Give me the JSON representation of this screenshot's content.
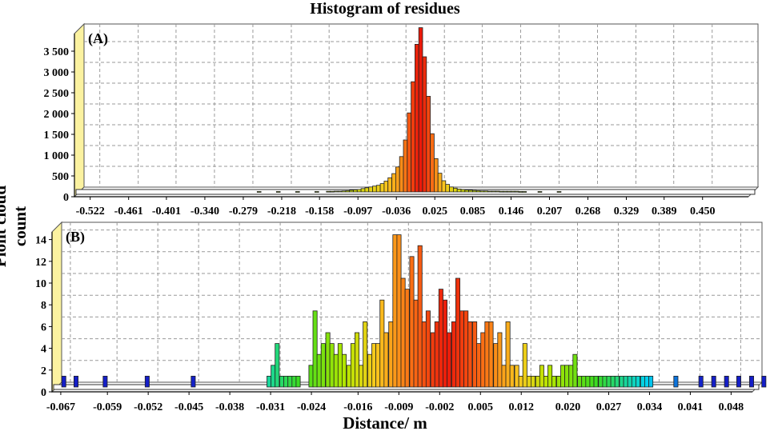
{
  "title": "Histogram of residues",
  "xlabel": "Distance/ m",
  "ylabel": "Piont cloud count",
  "chart_data": [
    {
      "type": "bar",
      "panel_label": "(A)",
      "ylim": [
        0,
        4000
      ],
      "yticks": [
        0,
        500,
        1000,
        1500,
        2000,
        2500,
        3000,
        3500
      ],
      "ytick_labels": [
        "0",
        "500",
        "1 000",
        "1 500",
        "2 000",
        "2 500",
        "3 000",
        "3 500"
      ],
      "xlim": [
        -0.547,
        0.538
      ],
      "xticks": [
        -0.522,
        -0.461,
        -0.401,
        -0.34,
        -0.279,
        -0.218,
        -0.158,
        -0.097,
        -0.036,
        0.025,
        0.085,
        0.146,
        0.207,
        0.268,
        0.329,
        0.389,
        0.45
      ],
      "xtick_labels": [
        "-0.522",
        "-0.461",
        "-0.401",
        "-0.340",
        "-0.279",
        "-0.218",
        "-0.158",
        "-0.097",
        "-0.036",
        "0.025",
        "0.085",
        "0.146",
        "0.207",
        "0.268",
        "0.329",
        "0.389",
        "0.450"
      ],
      "bin_width": 0.00611,
      "x": [
        -0.2615,
        -0.231,
        -0.2004,
        -0.1699,
        -0.1516,
        -0.1455,
        -0.1393,
        -0.1332,
        -0.1271,
        -0.121,
        -0.1149,
        -0.1088,
        -0.1027,
        -0.0966,
        -0.0905,
        -0.0844,
        -0.0783,
        -0.0722,
        -0.0661,
        -0.06,
        -0.0539,
        -0.0477,
        -0.0416,
        -0.0355,
        -0.0294,
        -0.0233,
        -0.0172,
        -0.0111,
        -0.005,
        0.0011,
        0.0072,
        0.0133,
        0.0194,
        0.0255,
        0.0316,
        0.0377,
        0.0438,
        0.0499,
        0.056,
        0.0621,
        0.0682,
        0.0743,
        0.0804,
        0.0865,
        0.0926,
        0.0987,
        0.1048,
        0.1109,
        0.117,
        0.1231,
        0.1292,
        0.1353,
        0.1414,
        0.1475,
        0.1536,
        0.1597,
        0.1842,
        0.2147
      ],
      "values": [
        10,
        10,
        10,
        10,
        15,
        15,
        20,
        20,
        25,
        30,
        40,
        50,
        60,
        80,
        100,
        120,
        140,
        160,
        200,
        260,
        340,
        440,
        600,
        850,
        1250,
        1900,
        2650,
        3550,
        3950,
        3250,
        2300,
        1400,
        800,
        450,
        270,
        180,
        120,
        90,
        70,
        55,
        45,
        40,
        35,
        30,
        25,
        25,
        20,
        20,
        20,
        15,
        15,
        15,
        15,
        15,
        10,
        10,
        10,
        10
      ]
    },
    {
      "type": "bar",
      "panel_label": "(B)",
      "ylim": [
        0,
        15
      ],
      "yticks": [
        0,
        2,
        4,
        6,
        8,
        10,
        12,
        14
      ],
      "ytick_labels": [
        "0",
        "2",
        "4",
        "6",
        "8",
        "10",
        "12",
        "14"
      ],
      "xlim": [
        -0.0685,
        0.0533
      ],
      "xticks": [
        -0.067,
        -0.059,
        -0.052,
        -0.045,
        -0.038,
        -0.031,
        -0.024,
        -0.016,
        -0.009,
        -0.002,
        0.005,
        0.012,
        0.02,
        0.027,
        0.034,
        0.041,
        0.048
      ],
      "xtick_labels": [
        "-0.067",
        "-0.059",
        "-0.052",
        "-0.045",
        "-0.038",
        "-0.031",
        "-0.024",
        "-0.016",
        "-0.009",
        "-0.002",
        "0.005",
        "0.012",
        "0.020",
        "0.027",
        "0.034",
        "0.041",
        "0.048"
      ],
      "bin_width": 0.00072,
      "x": [
        -0.0673,
        -0.0652,
        -0.0602,
        -0.053,
        -0.0451,
        -0.0321,
        -0.0314,
        -0.0307,
        -0.0299,
        -0.0292,
        -0.0285,
        -0.0278,
        -0.0271,
        -0.0249,
        -0.0242,
        -0.0235,
        -0.0228,
        -0.022,
        -0.0213,
        -0.0206,
        -0.0199,
        -0.0192,
        -0.0184,
        -0.0177,
        -0.017,
        -0.0163,
        -0.0156,
        -0.0148,
        -0.0141,
        -0.0134,
        -0.0127,
        -0.012,
        -0.0112,
        -0.0105,
        -0.0098,
        -0.0091,
        -0.0084,
        -0.0076,
        -0.0069,
        -0.0062,
        -0.0055,
        -0.0048,
        -0.004,
        -0.0033,
        -0.0026,
        -0.0019,
        -0.0012,
        -0.0004,
        0.0003,
        0.001,
        0.0017,
        0.0024,
        0.0032,
        0.0039,
        0.0046,
        0.0053,
        0.006,
        0.0068,
        0.0075,
        0.0082,
        0.0089,
        0.0096,
        0.0104,
        0.0111,
        0.0118,
        0.0125,
        0.0132,
        0.014,
        0.0147,
        0.0154,
        0.0161,
        0.0168,
        0.0176,
        0.0183,
        0.019,
        0.0197,
        0.0204,
        0.0212,
        0.0219,
        0.0226,
        0.0233,
        0.024,
        0.0248,
        0.0255,
        0.0262,
        0.0269,
        0.0276,
        0.0284,
        0.0291,
        0.0298,
        0.0305,
        0.0312,
        0.032,
        0.0327,
        0.0334,
        0.0377,
        0.042,
        0.0442,
        0.0464,
        0.0485,
        0.0507,
        0.0528
      ],
      "values": [
        1,
        1,
        1,
        1,
        1,
        1,
        2,
        4,
        1,
        1,
        1,
        1,
        1,
        2,
        7,
        3,
        4,
        5,
        4,
        3,
        4,
        3,
        2,
        4,
        5,
        2,
        6,
        3,
        4,
        4,
        8,
        5,
        6,
        14,
        14,
        10,
        9,
        12,
        8,
        13,
        6,
        7,
        5,
        6,
        9,
        8,
        5,
        6,
        10,
        7,
        7,
        6,
        6,
        4,
        5,
        6,
        6,
        4,
        5,
        2,
        6,
        2,
        2,
        1,
        4,
        1,
        1,
        1,
        2,
        1,
        2,
        1,
        1,
        2,
        2,
        2,
        3,
        1,
        1,
        1,
        1,
        1,
        1,
        1,
        1,
        1,
        1,
        1,
        1,
        1,
        1,
        1,
        1,
        1,
        1,
        1,
        1,
        1,
        1,
        1,
        1,
        1
      ]
    }
  ]
}
